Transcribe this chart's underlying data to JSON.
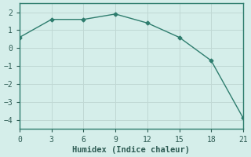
{
  "x": [
    0,
    3,
    6,
    9,
    12,
    15,
    18,
    21
  ],
  "y": [
    0.6,
    1.6,
    1.6,
    1.9,
    1.4,
    0.6,
    -0.7,
    -3.9
  ],
  "line_color": "#2e7d6e",
  "marker": "D",
  "marker_size": 2.5,
  "line_width": 1.0,
  "xlabel": "Humidex (Indice chaleur)",
  "xlim": [
    0,
    21
  ],
  "ylim": [
    -4.5,
    2.5
  ],
  "xticks": [
    0,
    3,
    6,
    9,
    12,
    15,
    18,
    21
  ],
  "yticks": [
    -4,
    -3,
    -2,
    -1,
    0,
    1,
    2
  ],
  "bg_color": "#d5eeea",
  "grid_color": "#c0d8d4",
  "spine_color": "#2e7d6e",
  "font_color": "#2e5c54",
  "xlabel_fontsize": 7.5,
  "tick_fontsize": 7
}
